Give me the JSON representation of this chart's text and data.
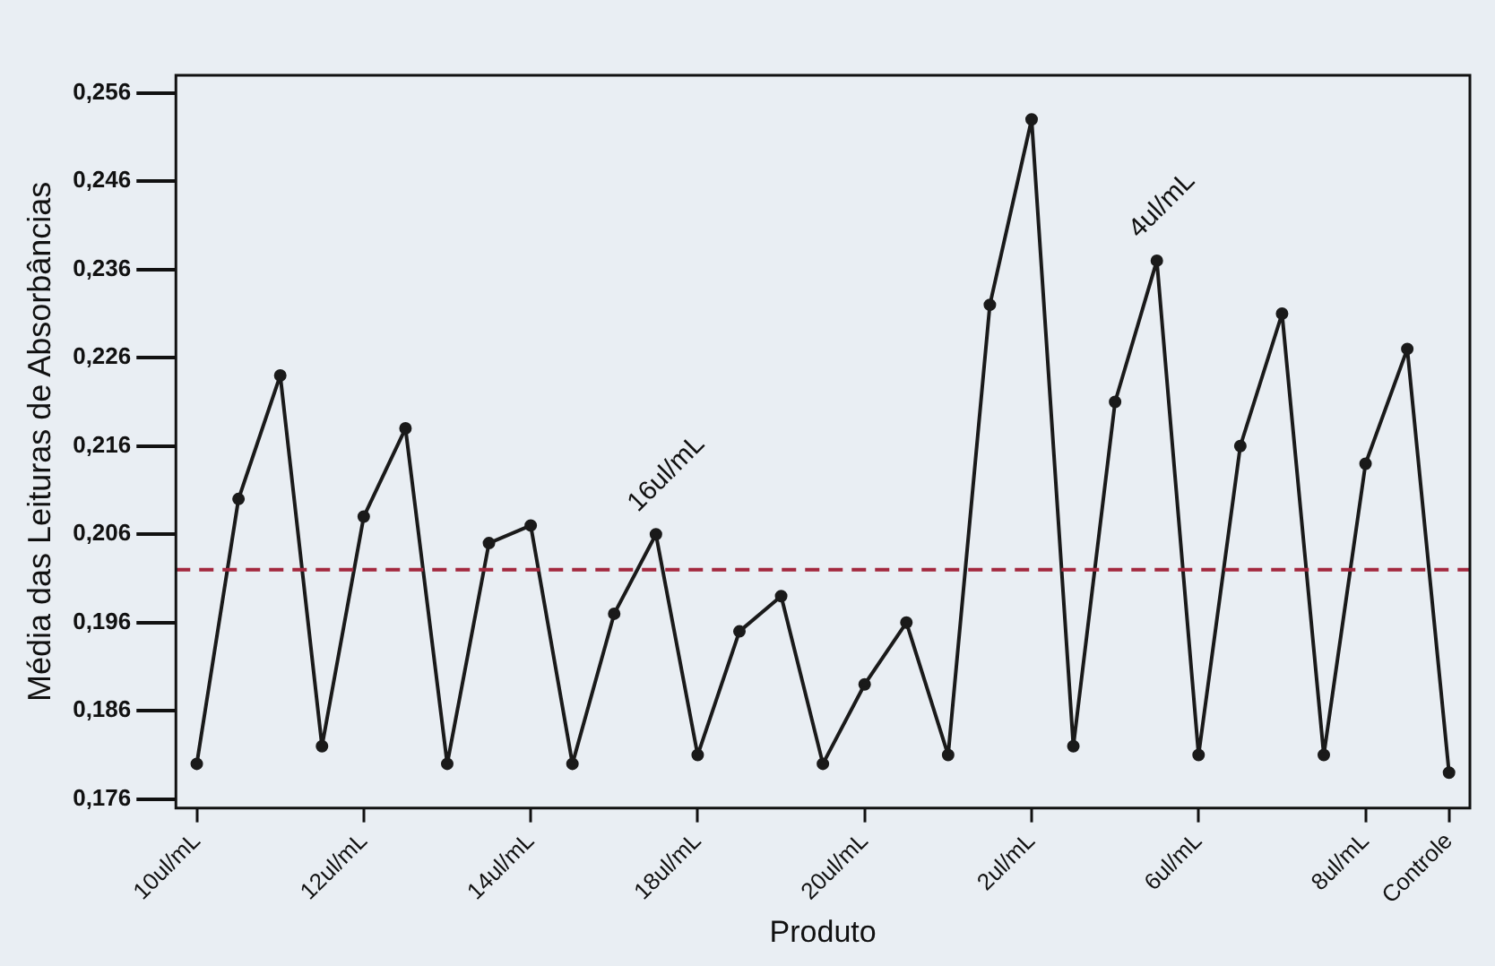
{
  "chart_data": {
    "type": "line",
    "xlabel": "Produto",
    "ylabel": "Média das Leituras de Absorbâncias",
    "categories": [
      "10ul/mL",
      null,
      null,
      null,
      "12ul/mL",
      null,
      null,
      null,
      "14ul/mL",
      null,
      null,
      null,
      "18ul/mL",
      null,
      null,
      null,
      "20ul/mL",
      null,
      null,
      null,
      "2ul/mL",
      null,
      null,
      null,
      "6ul/mL",
      null,
      null,
      null,
      "8ul/mL",
      null,
      "Controle"
    ],
    "series": [
      {
        "color": "#1a1a1a",
        "values": [
          0.18,
          0.21,
          0.224,
          0.182,
          0.208,
          0.218,
          0.18,
          0.205,
          0.207,
          0.18,
          0.197,
          0.206,
          0.181,
          0.195,
          0.199,
          0.18,
          0.189,
          0.196,
          0.181,
          0.232,
          0.253,
          0.182,
          0.221,
          0.237,
          0.181,
          0.216,
          0.231,
          0.181,
          0.214,
          0.227,
          0.179
        ]
      }
    ],
    "ylim": [
      0.175,
      0.258
    ],
    "yticks": [
      {
        "value": 0.176,
        "label": "0,176"
      },
      {
        "value": 0.186,
        "label": "0,186"
      },
      {
        "value": 0.196,
        "label": "0,196"
      },
      {
        "value": 0.206,
        "label": "0,206"
      },
      {
        "value": 0.216,
        "label": "0,216"
      },
      {
        "value": 0.226,
        "label": "0,226"
      },
      {
        "value": 0.236,
        "label": "0,236"
      },
      {
        "value": 0.246,
        "label": "0,246"
      },
      {
        "value": 0.256,
        "label": "0,256"
      }
    ],
    "ref_lines": [
      {
        "axis": "y",
        "value": 0.202,
        "color": "#a3283e",
        "line_style": "dashed"
      }
    ],
    "annotations": [
      "16ul/mL",
      "4ul/mL"
    ],
    "grid": false,
    "legend": false,
    "marker": "circle",
    "line_style": "solid"
  }
}
